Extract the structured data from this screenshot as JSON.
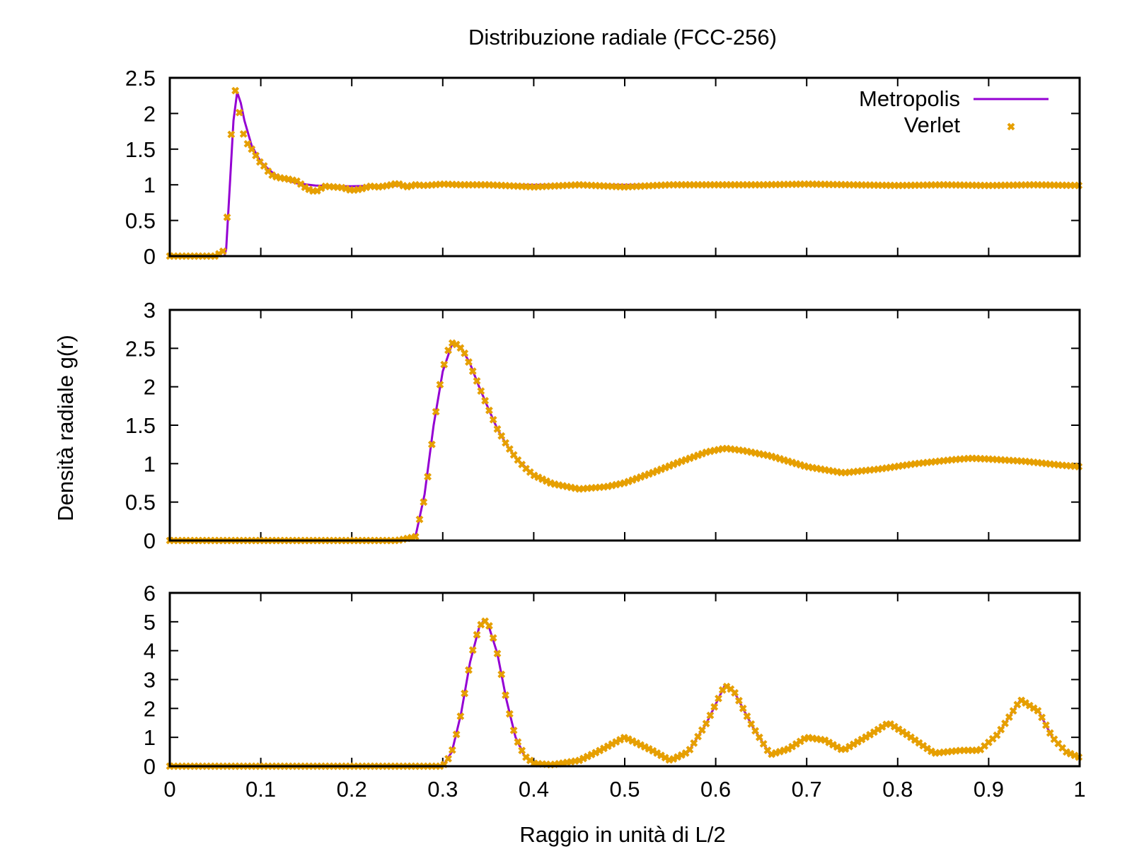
{
  "title": "Distribuzione radiale (FCC-256)",
  "xlabel": "Raggio in unità di L/2",
  "ylabel": "Densità radiale g(r)",
  "colors": {
    "metropolis": "#9400D3",
    "verlet": "#E69F00"
  },
  "chart_data": [
    {
      "type": "line",
      "xlim": [
        0,
        1
      ],
      "ylim": [
        0,
        2.5
      ],
      "yticks": [
        "0",
        "0.5",
        "1",
        "1.5",
        "2",
        "2.5"
      ],
      "legend": {
        "position": "top-right",
        "entries": [
          "Metropolis",
          "Verlet"
        ]
      },
      "series": [
        {
          "name": "Metropolis",
          "style": "line",
          "x": [
            0,
            0.06,
            0.062,
            0.066,
            0.07,
            0.074,
            0.078,
            0.082,
            0.09,
            0.1,
            0.11,
            0.12,
            0.14,
            0.16,
            0.18,
            0.2,
            0.25,
            0.3,
            0.4,
            0.5,
            0.6,
            0.7,
            0.8,
            0.9,
            1.0
          ],
          "y": [
            0,
            0,
            0.1,
            1.0,
            1.9,
            2.3,
            2.15,
            1.9,
            1.55,
            1.32,
            1.2,
            1.1,
            1.02,
            0.99,
            0.98,
            0.98,
            0.99,
            1.0,
            1.0,
            1.0,
            1.0,
            1.0,
            1.0,
            1.0,
            1.0
          ]
        },
        {
          "name": "Verlet",
          "style": "points",
          "x": [
            0,
            0.01,
            0.02,
            0.03,
            0.04,
            0.05,
            0.06,
            0.064,
            0.068,
            0.072,
            0.076,
            0.08,
            0.084,
            0.09,
            0.095,
            0.1,
            0.105,
            0.11,
            0.115,
            0.12,
            0.13,
            0.14,
            0.15,
            0.16,
            0.17,
            0.18,
            0.19,
            0.2,
            0.21,
            0.22,
            0.23,
            0.24,
            0.25,
            0.26,
            0.27,
            0.28,
            0.3,
            0.32,
            0.35,
            0.4,
            0.45,
            0.5,
            0.55,
            0.6,
            0.65,
            0.7,
            0.75,
            0.8,
            0.85,
            0.9,
            0.95,
            1.0
          ],
          "y": [
            0,
            0,
            0,
            0,
            0,
            0,
            0.08,
            0.7,
            1.85,
            2.32,
            2.05,
            1.75,
            1.6,
            1.5,
            1.4,
            1.3,
            1.25,
            1.15,
            1.12,
            1.1,
            1.08,
            1.05,
            0.95,
            0.9,
            0.98,
            0.97,
            0.96,
            0.92,
            0.94,
            0.98,
            0.97,
            0.99,
            1.02,
            0.97,
            1.0,
            0.99,
            1.01,
            1.0,
            1.0,
            0.97,
            1.0,
            0.97,
            1.0,
            1.0,
            1.0,
            1.01,
            1.0,
            0.99,
            1.0,
            0.99,
            1.0,
            0.99
          ]
        }
      ]
    },
    {
      "type": "line",
      "xlim": [
        0,
        1
      ],
      "ylim": [
        0,
        3
      ],
      "yticks": [
        "0",
        "0.5",
        "1",
        "1.5",
        "2",
        "2.5",
        "3"
      ],
      "series": [
        {
          "name": "Metropolis",
          "style": "line",
          "x": [
            0,
            0.26,
            0.27,
            0.28,
            0.29,
            0.3,
            0.31,
            0.32,
            0.33,
            0.34,
            0.35,
            0.36,
            0.37,
            0.38,
            0.4,
            0.42,
            0.45,
            0.48,
            0.5,
            0.53,
            0.56,
            0.59,
            0.61,
            0.63,
            0.66,
            0.7,
            0.74,
            0.78,
            0.82,
            0.86,
            0.88,
            0.9,
            0.94,
            0.98,
            1.0
          ],
          "y": [
            0,
            0,
            0.05,
            0.6,
            1.5,
            2.2,
            2.55,
            2.52,
            2.3,
            2.0,
            1.72,
            1.45,
            1.25,
            1.08,
            0.85,
            0.74,
            0.67,
            0.7,
            0.75,
            0.88,
            1.02,
            1.15,
            1.2,
            1.17,
            1.1,
            0.96,
            0.88,
            0.93,
            1.0,
            1.05,
            1.07,
            1.06,
            1.03,
            0.98,
            0.96
          ]
        },
        {
          "name": "Verlet",
          "style": "points",
          "x": [
            0,
            0.05,
            0.1,
            0.15,
            0.2,
            0.25,
            0.27,
            0.28,
            0.285,
            0.29,
            0.295,
            0.3,
            0.305,
            0.31,
            0.315,
            0.32,
            0.325,
            0.33,
            0.335,
            0.34,
            0.35,
            0.36,
            0.37,
            0.38,
            0.39,
            0.4,
            0.42,
            0.45,
            0.48,
            0.5,
            0.53,
            0.56,
            0.59,
            0.61,
            0.63,
            0.66,
            0.7,
            0.74,
            0.78,
            0.82,
            0.86,
            0.88,
            0.9,
            0.94,
            0.98,
            1.0
          ],
          "y": [
            0,
            0,
            0,
            0,
            0,
            0,
            0.05,
            0.55,
            0.95,
            1.45,
            1.9,
            2.22,
            2.45,
            2.57,
            2.55,
            2.5,
            2.42,
            2.28,
            2.15,
            2.0,
            1.72,
            1.45,
            1.25,
            1.08,
            0.95,
            0.85,
            0.74,
            0.67,
            0.7,
            0.75,
            0.88,
            1.02,
            1.15,
            1.2,
            1.17,
            1.1,
            0.96,
            0.88,
            0.93,
            1.0,
            1.05,
            1.07,
            1.06,
            1.03,
            0.98,
            0.96
          ]
        }
      ]
    },
    {
      "type": "line",
      "xlim": [
        0,
        1
      ],
      "ylim": [
        0,
        6
      ],
      "xticks": [
        "0",
        "0.1",
        "0.2",
        "0.3",
        "0.4",
        "0.5",
        "0.6",
        "0.7",
        "0.8",
        "0.9",
        "1"
      ],
      "yticks": [
        "0",
        "1",
        "2",
        "3",
        "4",
        "5",
        "6"
      ],
      "series": [
        {
          "name": "Metropolis",
          "style": "line",
          "x": [
            0,
            0.3,
            0.31,
            0.32,
            0.33,
            0.34,
            0.345,
            0.35,
            0.36,
            0.37,
            0.38,
            0.39,
            0.4,
            0.42,
            0.45,
            0.47,
            0.5,
            0.53,
            0.55,
            0.57,
            0.59,
            0.61,
            0.62,
            0.64,
            0.66,
            0.68,
            0.7,
            0.72,
            0.74,
            0.77,
            0.79,
            0.81,
            0.84,
            0.87,
            0.89,
            0.91,
            0.935,
            0.955,
            0.97,
            0.985,
            1.0
          ],
          "y": [
            0,
            0,
            0.5,
            1.8,
            3.6,
            4.8,
            5.05,
            4.9,
            3.9,
            2.3,
            1.0,
            0.35,
            0.1,
            0.05,
            0.2,
            0.5,
            1.0,
            0.55,
            0.2,
            0.5,
            1.5,
            2.8,
            2.6,
            1.4,
            0.4,
            0.6,
            1.0,
            0.9,
            0.55,
            1.1,
            1.5,
            1.1,
            0.45,
            0.55,
            0.55,
            1.1,
            2.3,
            1.9,
            1.0,
            0.5,
            0.3
          ]
        },
        {
          "name": "Verlet",
          "style": "points",
          "x": [
            0,
            0.05,
            0.1,
            0.15,
            0.2,
            0.25,
            0.3,
            0.305,
            0.31,
            0.315,
            0.32,
            0.325,
            0.33,
            0.335,
            0.34,
            0.345,
            0.35,
            0.355,
            0.36,
            0.365,
            0.37,
            0.375,
            0.38,
            0.39,
            0.4,
            0.42,
            0.45,
            0.47,
            0.5,
            0.53,
            0.55,
            0.57,
            0.59,
            0.61,
            0.62,
            0.64,
            0.66,
            0.68,
            0.7,
            0.72,
            0.74,
            0.77,
            0.79,
            0.81,
            0.84,
            0.87,
            0.89,
            0.91,
            0.935,
            0.955,
            0.97,
            0.985,
            1.0
          ],
          "y": [
            0,
            0,
            0,
            0,
            0,
            0,
            0,
            0.2,
            0.5,
            1.1,
            1.8,
            2.7,
            3.6,
            4.3,
            4.8,
            5.05,
            4.95,
            4.5,
            3.9,
            3.1,
            2.3,
            1.6,
            1.0,
            0.35,
            0.1,
            0.05,
            0.2,
            0.5,
            1.0,
            0.55,
            0.2,
            0.5,
            1.5,
            2.8,
            2.6,
            1.4,
            0.4,
            0.6,
            1.0,
            0.9,
            0.55,
            1.1,
            1.5,
            1.1,
            0.45,
            0.55,
            0.55,
            1.1,
            2.3,
            1.9,
            1.0,
            0.5,
            0.3
          ]
        }
      ]
    }
  ]
}
